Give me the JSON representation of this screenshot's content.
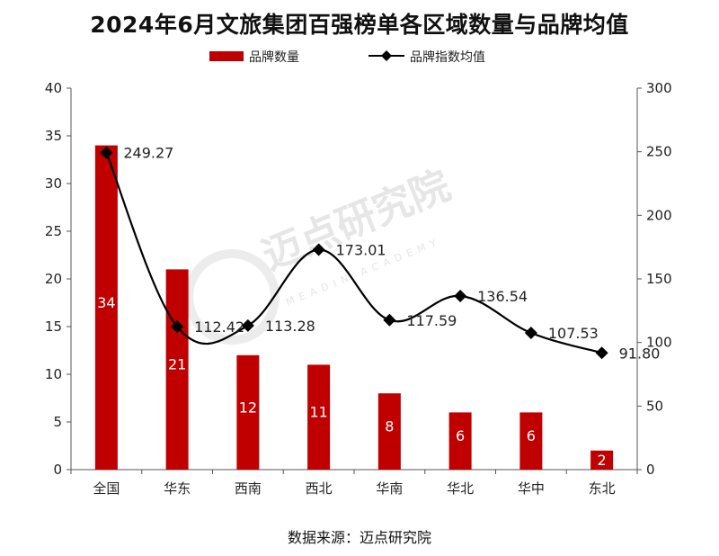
{
  "chart_data": {
    "type": "bar+line",
    "title": "2024年6月文旅集团百强榜单各区域数量与品牌均值",
    "categories": [
      "全国",
      "华东",
      "西南",
      "西北",
      "华南",
      "华北",
      "华中",
      "东北"
    ],
    "series": [
      {
        "name": "品牌数量",
        "type": "bar",
        "axis": "left",
        "color": "#c00000",
        "values": [
          34,
          21,
          12,
          11,
          8,
          6,
          6,
          2
        ]
      },
      {
        "name": "品牌指数均值",
        "type": "line",
        "axis": "right",
        "color": "#000000",
        "values": [
          249.27,
          112.42,
          113.28,
          173.01,
          117.59,
          136.54,
          107.53,
          91.8
        ],
        "labels": [
          "249.27",
          "112.42",
          "113.28",
          "173.01",
          "117.59",
          "136.54",
          "107.53",
          "91.80"
        ]
      }
    ],
    "y_left": {
      "range": [
        0,
        40
      ],
      "ticks": [
        0,
        5,
        10,
        15,
        20,
        25,
        30,
        35,
        40
      ]
    },
    "y_right": {
      "range": [
        0,
        300
      ],
      "ticks": [
        0,
        50,
        100,
        150,
        200,
        250,
        300
      ]
    },
    "legend": {
      "position": "top"
    },
    "source_note": "数据来源：迈点研究院",
    "watermark": {
      "main": "迈点研究院",
      "sub": "MEADIN ACADEMY"
    }
  }
}
